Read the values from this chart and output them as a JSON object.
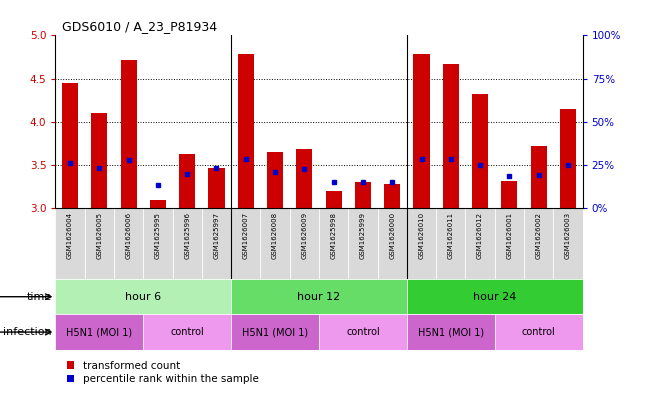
{
  "title": "GDS6010 / A_23_P81934",
  "samples": [
    "GSM1626004",
    "GSM1626005",
    "GSM1626006",
    "GSM1625995",
    "GSM1625996",
    "GSM1625997",
    "GSM1626007",
    "GSM1626008",
    "GSM1626009",
    "GSM1625998",
    "GSM1625999",
    "GSM1626000",
    "GSM1626010",
    "GSM1626011",
    "GSM1626012",
    "GSM1626001",
    "GSM1626002",
    "GSM1626003"
  ],
  "red_values": [
    4.45,
    4.1,
    4.72,
    3.1,
    3.63,
    3.47,
    4.78,
    3.65,
    3.68,
    3.2,
    3.3,
    3.28,
    4.78,
    4.67,
    4.32,
    3.32,
    3.72,
    4.15
  ],
  "blue_values": [
    3.52,
    3.47,
    3.56,
    3.27,
    3.4,
    3.47,
    3.57,
    3.42,
    3.45,
    3.3,
    3.3,
    3.3,
    3.57,
    3.57,
    3.5,
    3.37,
    3.38,
    3.5
  ],
  "ylim": [
    3.0,
    5.0
  ],
  "y2lim": [
    0,
    100
  ],
  "yticks": [
    3.0,
    3.5,
    4.0,
    4.5,
    5.0
  ],
  "y2ticks": [
    0,
    25,
    50,
    75,
    100
  ],
  "y2ticklabels": [
    "0%",
    "25%",
    "50%",
    "75%",
    "100%"
  ],
  "bar_width": 0.55,
  "bar_bottom": 3.0,
  "time_groups": [
    {
      "label": "hour 6",
      "start": 0,
      "end": 6,
      "color": "#b3f0b3"
    },
    {
      "label": "hour 12",
      "start": 6,
      "end": 12,
      "color": "#66dd66"
    },
    {
      "label": "hour 24",
      "start": 12,
      "end": 18,
      "color": "#33cc33"
    }
  ],
  "infection_groups": [
    {
      "label": "H5N1 (MOI 1)",
      "start": 0,
      "end": 3,
      "color": "#cc66cc"
    },
    {
      "label": "control",
      "start": 3,
      "end": 6,
      "color": "#ee99ee"
    },
    {
      "label": "H5N1 (MOI 1)",
      "start": 6,
      "end": 9,
      "color": "#cc66cc"
    },
    {
      "label": "control",
      "start": 9,
      "end": 12,
      "color": "#ee99ee"
    },
    {
      "label": "H5N1 (MOI 1)",
      "start": 12,
      "end": 15,
      "color": "#cc66cc"
    },
    {
      "label": "control",
      "start": 15,
      "end": 18,
      "color": "#ee99ee"
    }
  ],
  "red_color": "#cc0000",
  "blue_color": "#0000cc",
  "tick_color_left": "#cc0000",
  "tick_color_right": "#0000cc",
  "sample_cell_color": "#d9d9d9",
  "legend_items": [
    "transformed count",
    "percentile rank within the sample"
  ],
  "vline_color": "#000000",
  "grid_dotted_color": "#555555"
}
